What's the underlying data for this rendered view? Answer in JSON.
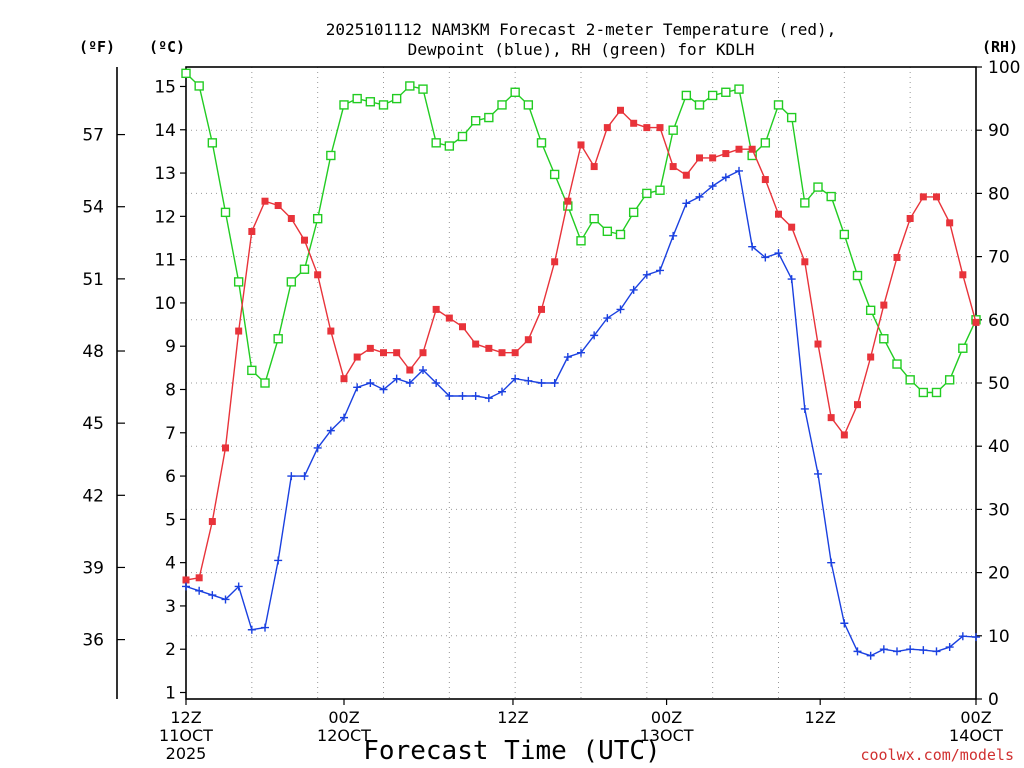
{
  "chart_data": {
    "type": "line",
    "title_line1": "2025101112 NAM3KM Forecast 2-meter Temperature (red),",
    "title_line2": "Dewpoint (blue), RH (green) for KDLH",
    "xlabel": "Forecast Time (UTC)",
    "credit": "coolwx.com/models",
    "axis_unit_f": "(ºF)",
    "axis_unit_c": "(ºC)",
    "axis_unit_rh": "(RH)",
    "ylim_c": [
      0.85,
      15.45
    ],
    "ylim_rh": [
      0,
      100
    ],
    "xlim_hours": [
      0,
      36
    ],
    "grid": true,
    "yticks_c": [
      1,
      2,
      3,
      4,
      5,
      6,
      7,
      8,
      9,
      10,
      11,
      12,
      13,
      14,
      15
    ],
    "yticks_f": [
      36,
      39,
      42,
      45,
      48,
      51,
      54,
      57
    ],
    "yticks_rh": [
      0,
      10,
      20,
      30,
      40,
      50,
      60,
      70,
      80,
      90,
      100
    ],
    "xticks": [
      {
        "hour": 0,
        "l1": "12Z",
        "l2": "11OCT",
        "l3": "2025"
      },
      {
        "hour": 7.2,
        "l1": "00Z",
        "l2": "12OCT",
        "l3": ""
      },
      {
        "hour": 14.9,
        "l1": "12Z",
        "l2": "",
        "l3": ""
      },
      {
        "hour": 21.9,
        "l1": "00Z",
        "l2": "13OCT",
        "l3": ""
      },
      {
        "hour": 28.9,
        "l1": "12Z",
        "l2": "",
        "l3": ""
      },
      {
        "hour": 36,
        "l1": "00Z",
        "l2": "14OCT",
        "l3": ""
      }
    ],
    "series": [
      {
        "name": "Temperature",
        "color": "#e8333a",
        "marker": "filled-square",
        "axis": "C",
        "x": [
          0,
          0.6,
          1.2,
          1.8,
          2.4,
          3,
          3.6,
          4.2,
          4.8,
          5.4,
          6,
          6.6,
          7.2,
          7.8,
          8.4,
          9,
          9.6,
          10.2,
          10.8,
          11.4,
          12,
          12.6,
          13.2,
          13.8,
          14.4,
          15,
          15.6,
          16.2,
          16.8,
          17.4,
          18,
          18.6,
          19.2,
          19.8,
          20.4,
          21,
          21.6,
          22.2,
          22.8,
          23.4,
          24,
          24.6,
          25.2,
          25.8,
          26.4,
          27,
          27.6,
          28.2,
          28.8,
          29.4,
          30,
          30.6,
          31.2,
          31.8,
          32.4,
          33,
          33.6,
          34.2,
          34.8,
          35.4,
          36
        ],
        "values": [
          3.6,
          3.65,
          4.95,
          6.65,
          9.35,
          11.65,
          12.35,
          12.25,
          11.95,
          11.45,
          10.65,
          9.35,
          8.25,
          8.75,
          8.95,
          8.85,
          8.85,
          8.45,
          8.85,
          9.85,
          9.65,
          9.45,
          9.05,
          8.95,
          8.85,
          8.85,
          9.15,
          9.85,
          10.95,
          12.35,
          13.65,
          13.15,
          14.05,
          14.45,
          14.15,
          14.05,
          14.05,
          13.15,
          12.95,
          13.35,
          13.35,
          13.45,
          13.55,
          13.55,
          12.85,
          12.05,
          11.75,
          10.95,
          9.05,
          7.35,
          6.95,
          7.65,
          8.75,
          9.95,
          11.05,
          11.95,
          12.45,
          12.45,
          11.85,
          10.65,
          9.55
        ]
      },
      {
        "name": "Dewpoint",
        "color": "#1a40e0",
        "marker": "plus",
        "axis": "C",
        "x": [
          0,
          0.6,
          1.2,
          1.8,
          2.4,
          3,
          3.6,
          4.2,
          4.8,
          5.4,
          6,
          6.6,
          7.2,
          7.8,
          8.4,
          9,
          9.6,
          10.2,
          10.8,
          11.4,
          12,
          12.6,
          13.2,
          13.8,
          14.4,
          15,
          15.6,
          16.2,
          16.8,
          17.4,
          18,
          18.6,
          19.2,
          19.8,
          20.4,
          21,
          21.6,
          22.2,
          22.8,
          23.4,
          24,
          24.6,
          25.2,
          25.8,
          26.4,
          27,
          27.6,
          28.2,
          28.8,
          29.4,
          30,
          30.6,
          31.2,
          31.8,
          32.4,
          33,
          33.6,
          34.2,
          34.8,
          35.4,
          36
        ],
        "values": [
          3.45,
          3.35,
          3.25,
          3.15,
          3.45,
          2.45,
          2.5,
          4.05,
          6.0,
          6.0,
          6.65,
          7.05,
          7.35,
          8.05,
          8.15,
          8.0,
          8.25,
          8.15,
          8.45,
          8.15,
          7.85,
          7.85,
          7.85,
          7.8,
          7.95,
          8.25,
          8.2,
          8.15,
          8.15,
          8.75,
          8.85,
          9.25,
          9.65,
          9.85,
          10.3,
          10.65,
          10.75,
          11.55,
          12.3,
          12.45,
          12.7,
          12.9,
          13.05,
          11.3,
          11.05,
          11.15,
          10.55,
          7.55,
          6.05,
          4.0,
          2.6,
          1.95,
          1.85,
          2.0,
          1.95,
          2.0,
          1.98,
          1.95,
          2.05,
          2.3,
          2.28
        ]
      },
      {
        "name": "RH",
        "color": "#22cc22",
        "marker": "open-square",
        "axis": "RH",
        "x": [
          0,
          0.6,
          1.2,
          1.8,
          2.4,
          3,
          3.6,
          4.2,
          4.8,
          5.4,
          6,
          6.6,
          7.2,
          7.8,
          8.4,
          9,
          9.6,
          10.2,
          10.8,
          11.4,
          12,
          12.6,
          13.2,
          13.8,
          14.4,
          15,
          15.6,
          16.2,
          16.8,
          17.4,
          18,
          18.6,
          19.2,
          19.8,
          20.4,
          21,
          21.6,
          22.2,
          22.8,
          23.4,
          24,
          24.6,
          25.2,
          25.8,
          26.4,
          27,
          27.6,
          28.2,
          28.8,
          29.4,
          30,
          30.6,
          31.2,
          31.8,
          32.4,
          33,
          33.6,
          34.2,
          34.8,
          35.4,
          36
        ],
        "values": [
          99,
          97,
          88,
          77,
          66,
          52,
          50,
          57,
          66,
          68,
          76,
          86,
          94,
          95,
          94.5,
          94,
          95,
          97,
          96.5,
          88,
          87.5,
          89,
          91.5,
          92,
          94,
          96,
          94,
          88,
          83,
          78,
          72.5,
          76,
          74,
          73.5,
          77,
          80,
          80.5,
          90,
          95.5,
          94,
          95.5,
          96,
          96.5,
          86,
          88,
          94,
          92,
          78.5,
          81,
          79.5,
          73.5,
          67,
          61.5,
          57,
          53,
          50.5,
          48.5,
          48.5,
          50.5,
          55.5,
          60
        ]
      }
    ]
  }
}
